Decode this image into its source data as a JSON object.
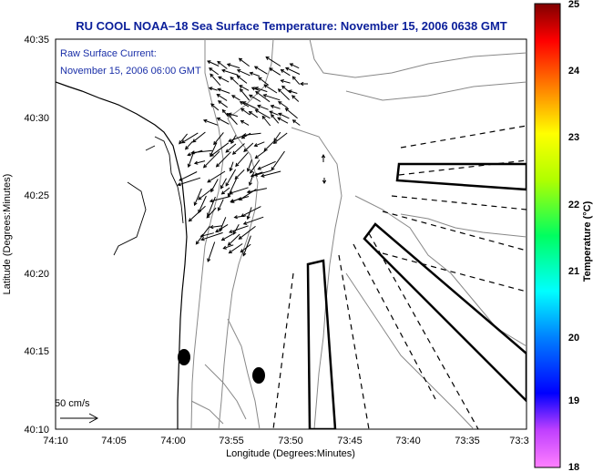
{
  "chart_data": {
    "type": "map",
    "title": "RU COOL  NOAA–18  Sea Surface Temperature:  November 15, 2006 0638 GMT",
    "annotation_lines": [
      "Raw Surface Current:",
      "November 15, 2006 06:00 GMT"
    ],
    "scale_label": "50 cm/s",
    "xlabel": "Longitude (Degrees:Minutes)",
    "ylabel": "Latitude (Degrees:Minutes)",
    "x_ticks": [
      "74:10",
      "74:05",
      "74:00",
      "73:55",
      "73:50",
      "73:45",
      "73:40",
      "73:35",
      "73:3"
    ],
    "y_ticks": [
      "40:35",
      "40:30",
      "40:25",
      "40:20",
      "40:15",
      "40:10"
    ],
    "xlim_minutes_west": [
      10,
      -30
    ],
    "ylim_minutes_north": [
      10,
      35
    ],
    "colorbar": {
      "label": "Temperature (°C)",
      "ticks": [
        "25",
        "24",
        "23",
        "22",
        "21",
        "20",
        "19",
        "18"
      ],
      "range": [
        18,
        25
      ],
      "colors": [
        "#ff00ff",
        "#0000ff",
        "#00ffff",
        "#00ff00",
        "#ffff00",
        "#ff8000",
        "#ff0000",
        "#800000"
      ]
    },
    "grid": false
  }
}
